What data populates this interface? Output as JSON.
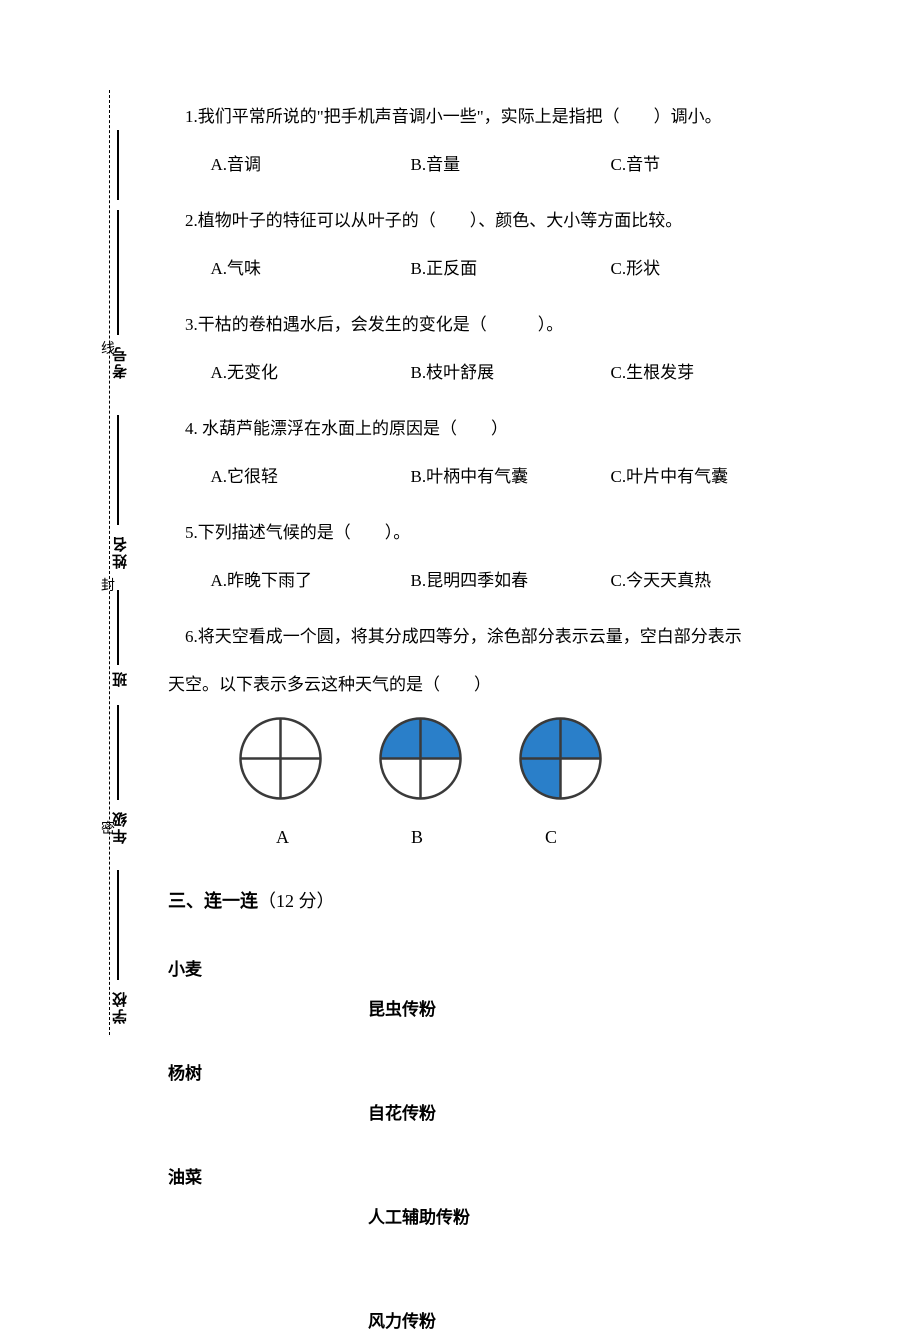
{
  "sidebar": {
    "labels": {
      "school": "学校",
      "grade": "年级",
      "class": "班",
      "name": "姓名",
      "exam_no": "考号"
    },
    "fold_marks": {
      "mi": "密",
      "feng": "封",
      "xian": "线"
    }
  },
  "questions": {
    "q1": {
      "stem": "1.我们平常所说的\"把手机声音调小一些\"，实际上是指把（　　）调小。",
      "opts": {
        "A": "A.音调",
        "B": "B.音量",
        "C": "C.音节"
      }
    },
    "q2": {
      "stem": "2.植物叶子的特征可以从叶子的（　　）、颜色、大小等方面比较。",
      "opts": {
        "A": "A.气味",
        "B": "B.正反面",
        "C": "C.形状"
      }
    },
    "q3": {
      "stem": "3.干枯的卷柏遇水后，会发生的变化是（　　　）。",
      "opts": {
        "A": "A.无变化",
        "B": "B.枝叶舒展",
        "C": "C.生根发芽"
      }
    },
    "q4": {
      "stem": "4. 水葫芦能漂浮在水面上的原因是（　　）",
      "opts": {
        "A": "A.它很轻",
        "B": "B.叶柄中有气囊",
        "C": "C.叶片中有气囊"
      }
    },
    "q5": {
      "stem": "5.下列描述气候的是（　　）。",
      "opts": {
        "A": "A.昨晚下雨了",
        "B": "B.昆明四季如春",
        "C": "C.今天天真热"
      }
    },
    "q6": {
      "stem_line1": "6.将天空看成一个圆，将其分成四等分，涂色部分表示云量，空白部分表示",
      "stem_line2": "天空。以下表示多云这种天气的是（　　）",
      "diagrams": {
        "fill_color": "#2a7fc9",
        "border_color": "#3a3a3a",
        "stroke_width": 2.5,
        "items": [
          {
            "label": "A",
            "quads": [
              0,
              0,
              0,
              0
            ]
          },
          {
            "label": "B",
            "quads": [
              1,
              1,
              0,
              0
            ]
          },
          {
            "label": "C",
            "quads": [
              1,
              1,
              1,
              0
            ]
          }
        ],
        "radius": 40
      }
    }
  },
  "section3": {
    "title_bold": "三、连一连",
    "title_rest": "（12 分）",
    "left": [
      "小麦",
      "杨树",
      "油菜"
    ],
    "right": [
      "昆虫传粉",
      "自花传粉",
      "人工辅助传粉",
      "风力传粉"
    ]
  },
  "colors": {
    "background": "#ffffff",
    "text": "#000000"
  }
}
